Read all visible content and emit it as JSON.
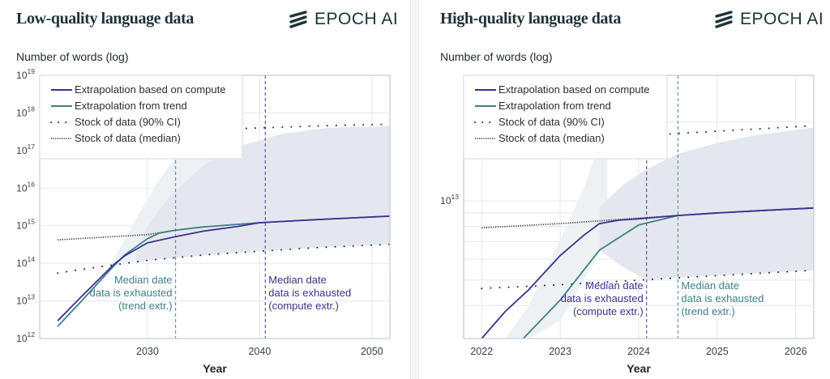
{
  "brand": "EPOCH AI",
  "colors": {
    "compute": "#3d3190",
    "trend": "#3f8089",
    "stock": "#2a2f35",
    "band_light": "#eef1f3",
    "band_dark": "#e4e8ee",
    "grid": "#e3e8ea",
    "title": "#1e3337"
  },
  "legend": [
    "Extrapolation based on compute",
    "Extrapolation from trend",
    "Stock of data (90% CI)",
    "Stock of data (median)"
  ],
  "chart_data": [
    {
      "type": "line",
      "title": "Low-quality language data",
      "ylabel": "Number of words (log)",
      "xlabel": "Year",
      "y_scale": "log",
      "xlim": [
        2020.4,
        2051.6
      ],
      "ylim": [
        1000000000000.0,
        1e+19
      ],
      "xticks": [
        2030,
        2040,
        2050
      ],
      "yticks": [
        {
          "value": 1000000000000.0,
          "label": "10",
          "exp": "12"
        },
        {
          "value": 10000000000000.0,
          "label": "10",
          "exp": "13"
        },
        {
          "value": 100000000000000.0,
          "label": "10",
          "exp": "14"
        },
        {
          "value": 1000000000000000.0,
          "label": "10",
          "exp": "15"
        },
        {
          "value": 1e+16,
          "label": "10",
          "exp": "16"
        },
        {
          "value": 1e+17,
          "label": "10",
          "exp": "17"
        },
        {
          "value": 1e+18,
          "label": "10",
          "exp": "18"
        },
        {
          "value": 1e+19,
          "label": "10",
          "exp": "19"
        }
      ],
      "y_gridlines": [
        10000000000000.0,
        100000000000000.0,
        1000000000000000.0,
        1e+16,
        1e+17,
        1e+18
      ],
      "grid": true,
      "legend_position": "top-left",
      "bands": [
        {
          "shade": "light",
          "x": [
            2026,
            2027,
            2029,
            2031,
            2033,
            2035,
            2037
          ],
          "upper": [
            40000000000000.0,
            126000000000000.0,
            1600000000000000.0,
            1.6e+16,
            1e+17,
            4e+17,
            1e+18
          ],
          "lower": [
            40000000000000.0,
            80000000000000.0,
            110000000000000.0,
            126000000000000.0,
            140000000000000.0,
            160000000000000.0,
            180000000000000.0
          ]
        },
        {
          "shade": "dark",
          "x": [
            2029,
            2030,
            2032,
            2035,
            2038,
            2042,
            2046,
            2051.6
          ],
          "upper": [
            200000000000000.0,
            1000000000000000.0,
            6300000000000000.0,
            4e+16,
            1.26e+17,
            2.8e+17,
            4e+17,
            4.5e+17
          ],
          "lower": [
            100000000000000.0,
            120000000000000.0,
            135000000000000.0,
            166000000000000.0,
            190000000000000.0,
            230000000000000.0,
            270000000000000.0,
            320000000000000.0
          ]
        }
      ],
      "series": [
        {
          "name": "Stock of data (90% CI)",
          "style": "ci",
          "x": [
            2022,
            2030,
            2039,
            2045,
            2051.6
          ],
          "y": [
            2e+17,
            2.8e+17,
            3.9e+17,
            4.5e+17,
            5e+17
          ]
        },
        {
          "name": "Stock of data (90% CI)",
          "style": "ci",
          "x": [
            2022,
            2026,
            2030,
            2035,
            2040,
            2045,
            2051.6
          ],
          "y": [
            55000000000000.0,
            83000000000000.0,
            120000000000000.0,
            166000000000000.0,
            210000000000000.0,
            260000000000000.0,
            320000000000000.0
          ]
        },
        {
          "name": "Stock of data (median)",
          "style": "median",
          "x": [
            2022,
            2030,
            2032.5,
            2035,
            2040,
            2045,
            2051.6
          ],
          "y": [
            420000000000000.0,
            580000000000000.0,
            760000000000000.0,
            930000000000000.0,
            1200000000000000.0,
            1450000000000000.0,
            1800000000000000.0
          ]
        },
        {
          "name": "Extrapolation from trend",
          "style": "trend",
          "x": [
            2022,
            2024,
            2027,
            2028,
            2030,
            2031,
            2032.5,
            2035,
            2040,
            2045,
            2051.6
          ],
          "y": [
            2100000000000.0,
            9100000000000.0,
            85000000000000.0,
            170000000000000.0,
            450000000000000.0,
            630000000000000.0,
            760000000000000.0,
            930000000000000.0,
            1200000000000000.0,
            1450000000000000.0,
            1800000000000000.0
          ]
        },
        {
          "name": "Extrapolation based on compute",
          "style": "compute",
          "x": [
            2022,
            2024,
            2027,
            2028,
            2030,
            2032.5,
            2035,
            2038,
            2040,
            2045,
            2051.6
          ],
          "y": [
            2950000000000.0,
            12000000000000.0,
            93000000000000.0,
            160000000000000.0,
            350000000000000.0,
            510000000000000.0,
            720000000000000.0,
            950000000000000.0,
            1200000000000000.0,
            1450000000000000.0,
            1800000000000000.0
          ]
        }
      ],
      "annotations": [
        {
          "style": "trend",
          "x": 2032.5,
          "align": "right",
          "lines": [
            "Median date",
            "data is exhausted",
            "(trend extr.)"
          ]
        },
        {
          "style": "compute",
          "x": 2040.5,
          "align": "left",
          "lines": [
            "Median date",
            "data is exhausted",
            "(compute extr.)"
          ]
        }
      ]
    },
    {
      "type": "line",
      "title": "High-quality language data",
      "ylabel": "Number of words (log)",
      "xlabel": "Year",
      "y_scale": "log",
      "xlim": [
        2021.77,
        2026.23
      ],
      "ylim": [
        3000000000000.0,
        30000000000000.0
      ],
      "xticks": [
        2022,
        2023,
        2024,
        2025,
        2026
      ],
      "yticks": [
        {
          "value": 10000000000000.0,
          "label": "10",
          "exp": "13"
        }
      ],
      "y_gridlines": [
        4000000000000.0,
        5000000000000.0,
        6000000000000.0,
        7000000000000.0,
        8000000000000.0,
        9000000000000.0,
        10000000000000.0,
        20000000000000.0
      ],
      "grid": true,
      "legend_position": "top-left",
      "bands": [
        {
          "shade": "light",
          "x": [
            2022.3,
            2022.6,
            2023,
            2023.3,
            2023.6
          ],
          "upper": [
            3000000000000.0,
            4000000000000.0,
            7100000000000.0,
            11200000000000.0,
            20000000000000.0
          ],
          "lower": [
            3000000000000.0,
            3000000000000.0,
            3500000000000.0,
            5000000000000.0,
            7100000000000.0
          ]
        },
        {
          "shade": "dark",
          "x": [
            2023.5,
            2023.8,
            2024.1,
            2024.5,
            2025,
            2025.5,
            2026.23
          ],
          "upper": [
            9500000000000.0,
            11500000000000.0,
            13200000000000.0,
            15100000000000.0,
            16600000000000.0,
            17800000000000.0,
            19000000000000.0
          ],
          "lower": [
            6500000000000.0,
            5600000000000.0,
            5000000000000.0,
            5100000000000.0,
            5200000000000.0,
            5300000000000.0,
            5450000000000.0
          ]
        }
      ],
      "series": [
        {
          "name": "Stock of data (90% CI)",
          "style": "ci",
          "x": [
            2022,
            2023,
            2024,
            2024.45,
            2025,
            2026.23
          ],
          "y": [
            16000000000000.0,
            16600000000000.0,
            17600000000000.0,
            18000000000000.0,
            18400000000000.0,
            19300000000000.0
          ]
        },
        {
          "name": "Stock of data (90% CI)",
          "style": "ci",
          "x": [
            2022,
            2023,
            2024,
            2025,
            2026.23
          ],
          "y": [
            4650000000000.0,
            4800000000000.0,
            5000000000000.0,
            5200000000000.0,
            5450000000000.0
          ]
        },
        {
          "name": "Stock of data (median)",
          "style": "median",
          "x": [
            2022,
            2023,
            2024,
            2024.5,
            2025,
            2026.23
          ],
          "y": [
            7900000000000.0,
            8200000000000.0,
            8600000000000.0,
            8800000000000.0,
            9000000000000.0,
            9400000000000.0
          ]
        },
        {
          "name": "Extrapolation from trend",
          "style": "trend",
          "x": [
            2022.53,
            2023,
            2023.5,
            2024,
            2024.5,
            2025,
            2025.6,
            2026.23
          ],
          "y": [
            3000000000000.0,
            4200000000000.0,
            6500000000000.0,
            8100000000000.0,
            8800000000000.0,
            9000000000000.0,
            9200000000000.0,
            9400000000000.0
          ]
        },
        {
          "name": "Extrapolation based on compute",
          "style": "compute",
          "x": [
            2022,
            2022.3,
            2022.6,
            2023,
            2023.3,
            2023.5,
            2023.75,
            2024,
            2024.5,
            2025,
            2025.6,
            2026.23
          ],
          "y": [
            3000000000000.0,
            3800000000000.0,
            4600000000000.0,
            6200000000000.0,
            7400000000000.0,
            8200000000000.0,
            8450000000000.0,
            8550000000000.0,
            8800000000000.0,
            9000000000000.0,
            9200000000000.0,
            9400000000000.0
          ]
        }
      ],
      "annotations": [
        {
          "style": "compute",
          "x": 2024.1,
          "align": "right",
          "lines": [
            "Median date",
            "data is exhausted",
            "(compute extr.)"
          ]
        },
        {
          "style": "trend",
          "x": 2024.5,
          "align": "left",
          "lines": [
            "Median date",
            "data is exhausted",
            "(trend extr.)"
          ]
        }
      ]
    }
  ]
}
